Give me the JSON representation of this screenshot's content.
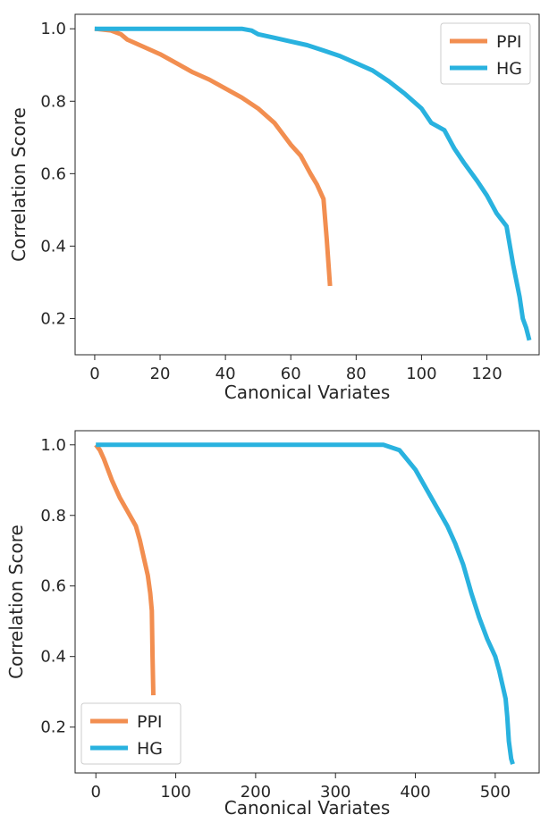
{
  "chart_data": [
    {
      "type": "line",
      "title": "",
      "xlabel": "Canonical Variates",
      "ylabel": "Correlation Score",
      "xlim": [
        -6,
        136
      ],
      "ylim": [
        0.1,
        1.04
      ],
      "xticks": [
        0,
        20,
        40,
        60,
        80,
        100,
        120
      ],
      "yticks": [
        0.2,
        0.4,
        0.6,
        0.8,
        1.0
      ],
      "ytick_labels": [
        "0.2",
        "0.4",
        "0.6",
        "0.8",
        "1.0"
      ],
      "grid": false,
      "legend_position": "top-right",
      "series": [
        {
          "name": "PPI",
          "color": "#f28e50",
          "x": [
            0,
            5,
            8,
            10,
            15,
            20,
            25,
            30,
            35,
            40,
            45,
            50,
            55,
            60,
            63,
            66,
            68,
            70,
            71,
            72
          ],
          "y": [
            1.0,
            0.995,
            0.985,
            0.97,
            0.95,
            0.93,
            0.905,
            0.88,
            0.86,
            0.835,
            0.81,
            0.78,
            0.74,
            0.68,
            0.65,
            0.6,
            0.57,
            0.53,
            0.42,
            0.29
          ]
        },
        {
          "name": "HG",
          "color": "#29b2df",
          "x": [
            0,
            10,
            20,
            30,
            40,
            45,
            48,
            50,
            55,
            60,
            65,
            70,
            75,
            80,
            85,
            90,
            95,
            100,
            103,
            107,
            110,
            113,
            117,
            120,
            123,
            126,
            128,
            130,
            131,
            132,
            133
          ],
          "y": [
            1.0,
            1.0,
            1.0,
            1.0,
            1.0,
            1.0,
            0.995,
            0.985,
            0.975,
            0.965,
            0.955,
            0.94,
            0.925,
            0.905,
            0.885,
            0.855,
            0.82,
            0.78,
            0.74,
            0.72,
            0.67,
            0.63,
            0.58,
            0.54,
            0.49,
            0.455,
            0.35,
            0.26,
            0.2,
            0.175,
            0.14
          ]
        }
      ]
    },
    {
      "type": "line",
      "title": "",
      "xlabel": "Canonical Variates",
      "ylabel": "Correlation Score",
      "xlim": [
        -26,
        555
      ],
      "ylim": [
        0.07,
        1.04
      ],
      "xticks": [
        0,
        100,
        200,
        300,
        400,
        500
      ],
      "yticks": [
        0.2,
        0.4,
        0.6,
        0.8,
        1.0
      ],
      "ytick_labels": [
        "0.2",
        "0.4",
        "0.6",
        "0.8",
        "1.0"
      ],
      "grid": false,
      "legend_position": "bottom-left",
      "series": [
        {
          "name": "PPI",
          "color": "#f28e50",
          "x": [
            0,
            5,
            10,
            20,
            30,
            40,
            50,
            55,
            60,
            65,
            68,
            70,
            71,
            72
          ],
          "y": [
            1.0,
            0.985,
            0.96,
            0.9,
            0.85,
            0.81,
            0.77,
            0.73,
            0.68,
            0.63,
            0.58,
            0.53,
            0.4,
            0.29
          ]
        },
        {
          "name": "HG",
          "color": "#29b2df",
          "x": [
            0,
            100,
            200,
            300,
            340,
            360,
            380,
            400,
            420,
            440,
            450,
            460,
            470,
            480,
            490,
            500,
            505,
            510,
            513,
            515,
            517,
            520,
            522
          ],
          "y": [
            1.0,
            1.0,
            1.0,
            1.0,
            1.0,
            1.0,
            0.985,
            0.93,
            0.85,
            0.77,
            0.72,
            0.66,
            0.58,
            0.51,
            0.45,
            0.4,
            0.36,
            0.31,
            0.28,
            0.23,
            0.16,
            0.11,
            0.095
          ]
        }
      ]
    }
  ]
}
